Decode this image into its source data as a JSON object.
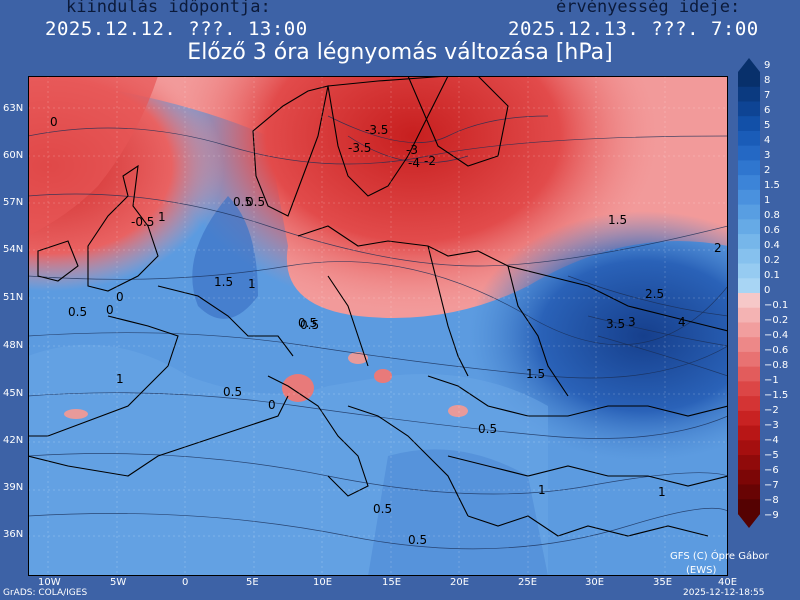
{
  "header": {
    "init_label": "kiindulás időpontja:",
    "init_value": "2025.12.12. ???. 13:00",
    "valid_label": "érvényesség ideje:",
    "valid_value": "2025.12.13. ???. 7:00",
    "title": "Előző 3 óra légnyomás változása [hPa]"
  },
  "map": {
    "lat_labels": [
      "63N",
      "60N",
      "57N",
      "54N",
      "51N",
      "48N",
      "45N",
      "42N",
      "39N",
      "36N"
    ],
    "lon_labels": [
      "10W",
      "5W",
      "0",
      "5E",
      "10E",
      "15E",
      "20E",
      "25E",
      "30E",
      "35E",
      "40E"
    ],
    "contour_labels": [
      "0",
      "-0.5",
      "0.5",
      "0",
      "0.5",
      "1",
      "1.5",
      "1.5",
      "2",
      "2.5",
      "3",
      "3.5",
      "4",
      "0.5",
      "0.5",
      "1",
      "1.5",
      "1",
      "0.5",
      "0.5",
      "1",
      "0.5",
      "-3.5",
      "-3",
      "-3.5",
      "-4",
      "-2",
      "0",
      "0",
      "0.5",
      "1",
      "0.5"
    ]
  },
  "scale": {
    "labels": [
      "9",
      "8",
      "7",
      "6",
      "5",
      "4",
      "3",
      "2",
      "1.5",
      "1",
      "0.8",
      "0.6",
      "0.4",
      "0.2",
      "0.1",
      "0",
      "−0.1",
      "−0.2",
      "−0.4",
      "−0.6",
      "−0.8",
      "−1",
      "−1.5",
      "−2",
      "−3",
      "−4",
      "−5",
      "−6",
      "−7",
      "−8",
      "−9"
    ],
    "colors": [
      "#08306b",
      "#0b3a80",
      "#0e4494",
      "#1250a8",
      "#1a5cb8",
      "#2468c4",
      "#2f76cf",
      "#3c84d8",
      "#4a91de",
      "#589ee2",
      "#66aae6",
      "#76b6ea",
      "#86c1ee",
      "#96cbf1",
      "#a8d5f4",
      "#f6c8c8",
      "#f4b3b3",
      "#f19e9e",
      "#ed8888",
      "#e87272",
      "#e25c5c",
      "#dc4646",
      "#d43434",
      "#c82222",
      "#b81616",
      "#a50f0f",
      "#900a0a",
      "#7c0606",
      "#680404",
      "#550202"
    ]
  },
  "footer": {
    "left": "GrADS: COLA/IGES",
    "right": "2025-12-12-18:55",
    "credit1": "GFS (C) Ópre Gábor",
    "credit2": "(EWS)"
  }
}
